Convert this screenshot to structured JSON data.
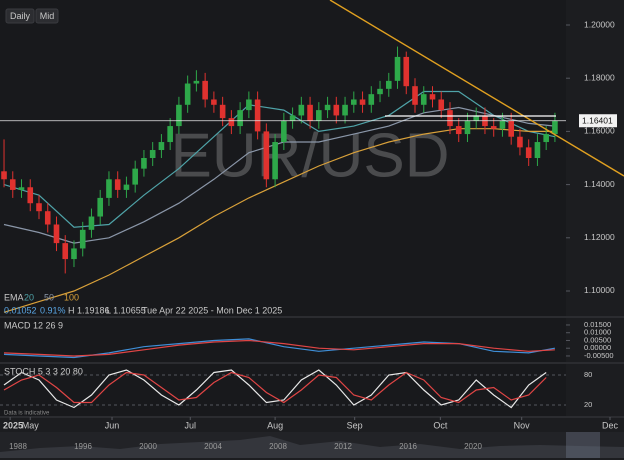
{
  "toolbar": {
    "buttons": [
      "Daily",
      "Mid"
    ]
  },
  "watermark": "EUR/USD",
  "note": "Data is indicative",
  "info": {
    "change": "0.01052",
    "change_pct": "0.91%",
    "high": "H 1.19186",
    "low": "L 1.10655",
    "range": "Tue Apr 22 2025 - Mon Dec 1 2025"
  },
  "navigator": {
    "years": [
      "1988",
      "1996",
      "2000",
      "2004",
      "2008",
      "2012",
      "2016",
      "2020"
    ]
  },
  "chart_data": [
    {
      "type": "candlestick",
      "legend_title": "EMA",
      "up_color": "#2ea84a",
      "down_color": "#e0322f",
      "open": [
        1.145,
        1.142,
        1.138,
        1.139,
        1.133,
        1.13,
        1.125,
        1.118,
        1.112,
        1.116,
        1.123,
        1.128,
        1.135,
        1.142,
        1.138,
        1.14,
        1.146,
        1.15,
        1.153,
        1.156,
        1.162,
        1.17,
        1.178,
        1.179,
        1.172,
        1.17,
        1.165,
        1.162,
        1.168,
        1.172,
        1.16,
        1.142,
        1.156,
        1.164,
        1.166,
        1.17,
        1.164,
        1.168,
        1.17,
        1.166,
        1.17,
        1.172,
        1.17,
        1.174,
        1.176,
        1.179,
        1.188,
        1.177,
        1.17,
        1.174,
        1.172,
        1.168,
        1.162,
        1.159,
        1.164,
        1.166,
        1.162,
        1.161,
        1.164,
        1.158,
        1.154,
        1.15,
        1.156,
        1.159
      ],
      "high": [
        1.157,
        1.145,
        1.142,
        1.142,
        1.136,
        1.133,
        1.128,
        1.121,
        1.119,
        1.126,
        1.131,
        1.138,
        1.145,
        1.145,
        1.143,
        1.149,
        1.153,
        1.156,
        1.159,
        1.165,
        1.173,
        1.181,
        1.183,
        1.182,
        1.175,
        1.173,
        1.168,
        1.171,
        1.175,
        1.175,
        1.163,
        1.159,
        1.167,
        1.169,
        1.173,
        1.173,
        1.171,
        1.173,
        1.173,
        1.173,
        1.175,
        1.175,
        1.177,
        1.179,
        1.182,
        1.1919,
        1.19,
        1.18,
        1.177,
        1.177,
        1.175,
        1.171,
        1.165,
        1.167,
        1.169,
        1.169,
        1.165,
        1.167,
        1.167,
        1.161,
        1.157,
        1.159,
        1.162,
        1.167
      ],
      "low": [
        1.139,
        1.135,
        1.135,
        1.13,
        1.127,
        1.122,
        1.115,
        1.1066,
        1.109,
        1.113,
        1.12,
        1.125,
        1.132,
        1.135,
        1.135,
        1.137,
        1.143,
        1.147,
        1.15,
        1.153,
        1.159,
        1.167,
        1.175,
        1.169,
        1.167,
        1.162,
        1.159,
        1.159,
        1.165,
        1.157,
        1.139,
        1.139,
        1.153,
        1.161,
        1.163,
        1.161,
        1.161,
        1.165,
        1.163,
        1.163,
        1.167,
        1.167,
        1.167,
        1.171,
        1.173,
        1.176,
        1.174,
        1.167,
        1.167,
        1.169,
        1.165,
        1.159,
        1.156,
        1.156,
        1.161,
        1.159,
        1.158,
        1.158,
        1.155,
        1.151,
        1.147,
        1.147,
        1.153,
        1.156
      ],
      "close": [
        1.142,
        1.138,
        1.139,
        1.133,
        1.13,
        1.125,
        1.118,
        1.112,
        1.116,
        1.123,
        1.128,
        1.135,
        1.142,
        1.138,
        1.14,
        1.146,
        1.15,
        1.153,
        1.156,
        1.162,
        1.17,
        1.178,
        1.179,
        1.172,
        1.17,
        1.165,
        1.162,
        1.168,
        1.172,
        1.16,
        1.142,
        1.156,
        1.164,
        1.166,
        1.17,
        1.164,
        1.168,
        1.17,
        1.166,
        1.17,
        1.172,
        1.17,
        1.174,
        1.176,
        1.179,
        1.188,
        1.177,
        1.17,
        1.174,
        1.172,
        1.168,
        1.162,
        1.159,
        1.164,
        1.166,
        1.162,
        1.161,
        1.164,
        1.158,
        1.154,
        1.15,
        1.156,
        1.159,
        1.164
      ],
      "series": [
        {
          "name": "20",
          "color": "#4fa3a8",
          "x": [
            0,
            4,
            8,
            12,
            16,
            20,
            24,
            28,
            32,
            36,
            40,
            44,
            48,
            52,
            56,
            60,
            63
          ],
          "values": [
            1.14,
            1.136,
            1.124,
            1.125,
            1.136,
            1.146,
            1.158,
            1.17,
            1.168,
            1.16,
            1.162,
            1.166,
            1.175,
            1.175,
            1.166,
            1.16,
            1.158
          ]
        },
        {
          "name": "50",
          "color": "#8a96a8",
          "x": [
            0,
            4,
            8,
            12,
            16,
            20,
            24,
            28,
            32,
            36,
            40,
            44,
            48,
            52,
            56,
            60,
            63
          ],
          "values": [
            1.125,
            1.122,
            1.118,
            1.12,
            1.126,
            1.133,
            1.142,
            1.152,
            1.156,
            1.156,
            1.159,
            1.162,
            1.167,
            1.169,
            1.166,
            1.163,
            1.162
          ]
        },
        {
          "name": "100",
          "color": "#d9a13a",
          "x": [
            0,
            4,
            8,
            12,
            16,
            20,
            24,
            28,
            32,
            36,
            40,
            44,
            48,
            52,
            56,
            60,
            63
          ],
          "values": [
            1.092,
            1.096,
            1.1,
            1.106,
            1.113,
            1.12,
            1.128,
            1.135,
            1.141,
            1.147,
            1.152,
            1.156,
            1.159,
            1.161,
            1.161,
            1.16,
            1.16
          ]
        }
      ],
      "price_label": {
        "value": 1.16401,
        "label": "1.16401"
      },
      "xlim": [
        -0.46,
        70.9
      ],
      "ylim": [
        1.0906,
        1.2094
      ],
      "yticks": [
        {
          "value": 1.2,
          "label": "1.20000"
        },
        {
          "value": 1.18,
          "label": "1.18000"
        },
        {
          "value": 1.16,
          "label": "1.16000"
        },
        {
          "value": 1.14,
          "label": "1.14000"
        },
        {
          "value": 1.12,
          "label": "1.12000"
        },
        {
          "value": 1.1,
          "label": "1.10000"
        }
      ],
      "xticks": [
        {
          "value": 0.7,
          "label": "2025"
        },
        {
          "value": 3,
          "label": "May"
        },
        {
          "value": 12.35,
          "label": "Jun"
        },
        {
          "value": 21.3,
          "label": "Jul"
        },
        {
          "value": 31,
          "label": "Aug"
        },
        {
          "value": 40.1,
          "label": "Sep"
        },
        {
          "value": 49.9,
          "label": "Oct"
        },
        {
          "value": 59.2,
          "label": "Nov"
        },
        {
          "value": 69.3,
          "label": "Dec"
        }
      ]
    },
    {
      "type": "line",
      "title": "MACD 12 26 9",
      "series": [
        {
          "color": "#3f8fd8",
          "x": [
            0,
            4,
            8,
            12,
            16,
            20,
            24,
            28,
            32,
            36,
            40,
            44,
            48,
            52,
            56,
            60,
            63
          ],
          "values": [
            -0.004,
            -0.005,
            -0.006,
            -0.003,
            0.001,
            0.003,
            0.005,
            0.006,
            0.001,
            -0.002,
            0.0,
            0.002,
            0.004,
            0.003,
            -0.002,
            -0.003,
            0.0
          ]
        },
        {
          "color": "#e04545",
          "x": [
            0,
            4,
            8,
            12,
            16,
            20,
            24,
            28,
            32,
            36,
            40,
            44,
            48,
            52,
            56,
            60,
            63
          ],
          "values": [
            -0.003,
            -0.004,
            -0.005,
            -0.004,
            -0.001,
            0.002,
            0.004,
            0.005,
            0.003,
            0.0,
            -0.001,
            0.001,
            0.003,
            0.003,
            0.0,
            -0.002,
            -0.001
          ]
        }
      ],
      "xlim": [
        -0.46,
        70.9
      ],
      "ylim": [
        -0.0089,
        0.0195
      ],
      "yticks": [
        {
          "value": 0.015,
          "label": "0.01500"
        },
        {
          "value": 0.01,
          "label": "0.01000"
        },
        {
          "value": 0.005,
          "label": "0.00500"
        },
        {
          "value": 0,
          "label": "0.00000"
        },
        {
          "value": -0.005,
          "label": "-0.00500"
        }
      ]
    },
    {
      "type": "line",
      "title": "STOCH 5 3 3 20 80",
      "series": [
        {
          "color": "#e8e8e8",
          "x": [
            0,
            2,
            4,
            6,
            8,
            10,
            12,
            14,
            16,
            18,
            20,
            22,
            24,
            26,
            28,
            30,
            32,
            34,
            36,
            38,
            40,
            42,
            44,
            46,
            48,
            50,
            52,
            54,
            56,
            58,
            60,
            62
          ],
          "values": [
            60,
            85,
            70,
            30,
            15,
            40,
            80,
            90,
            70,
            40,
            20,
            50,
            85,
            90,
            60,
            25,
            30,
            70,
            90,
            60,
            20,
            40,
            80,
            85,
            50,
            20,
            30,
            70,
            40,
            15,
            60,
            85
          ]
        },
        {
          "color": "#e04545",
          "x": [
            0,
            2,
            4,
            6,
            8,
            10,
            12,
            14,
            16,
            18,
            20,
            22,
            24,
            26,
            28,
            30,
            32,
            34,
            36,
            38,
            40,
            42,
            44,
            46,
            48,
            50,
            52,
            54,
            56,
            58,
            60,
            62
          ],
          "values": [
            50,
            70,
            80,
            55,
            25,
            25,
            60,
            85,
            80,
            55,
            30,
            35,
            65,
            85,
            75,
            45,
            25,
            50,
            80,
            75,
            40,
            30,
            60,
            85,
            70,
            35,
            25,
            50,
            55,
            30,
            40,
            75
          ]
        }
      ],
      "xlim": [
        -0.46,
        70.9
      ],
      "ylim": [
        -2,
        102
      ],
      "yticks": [
        80,
        20
      ]
    }
  ]
}
